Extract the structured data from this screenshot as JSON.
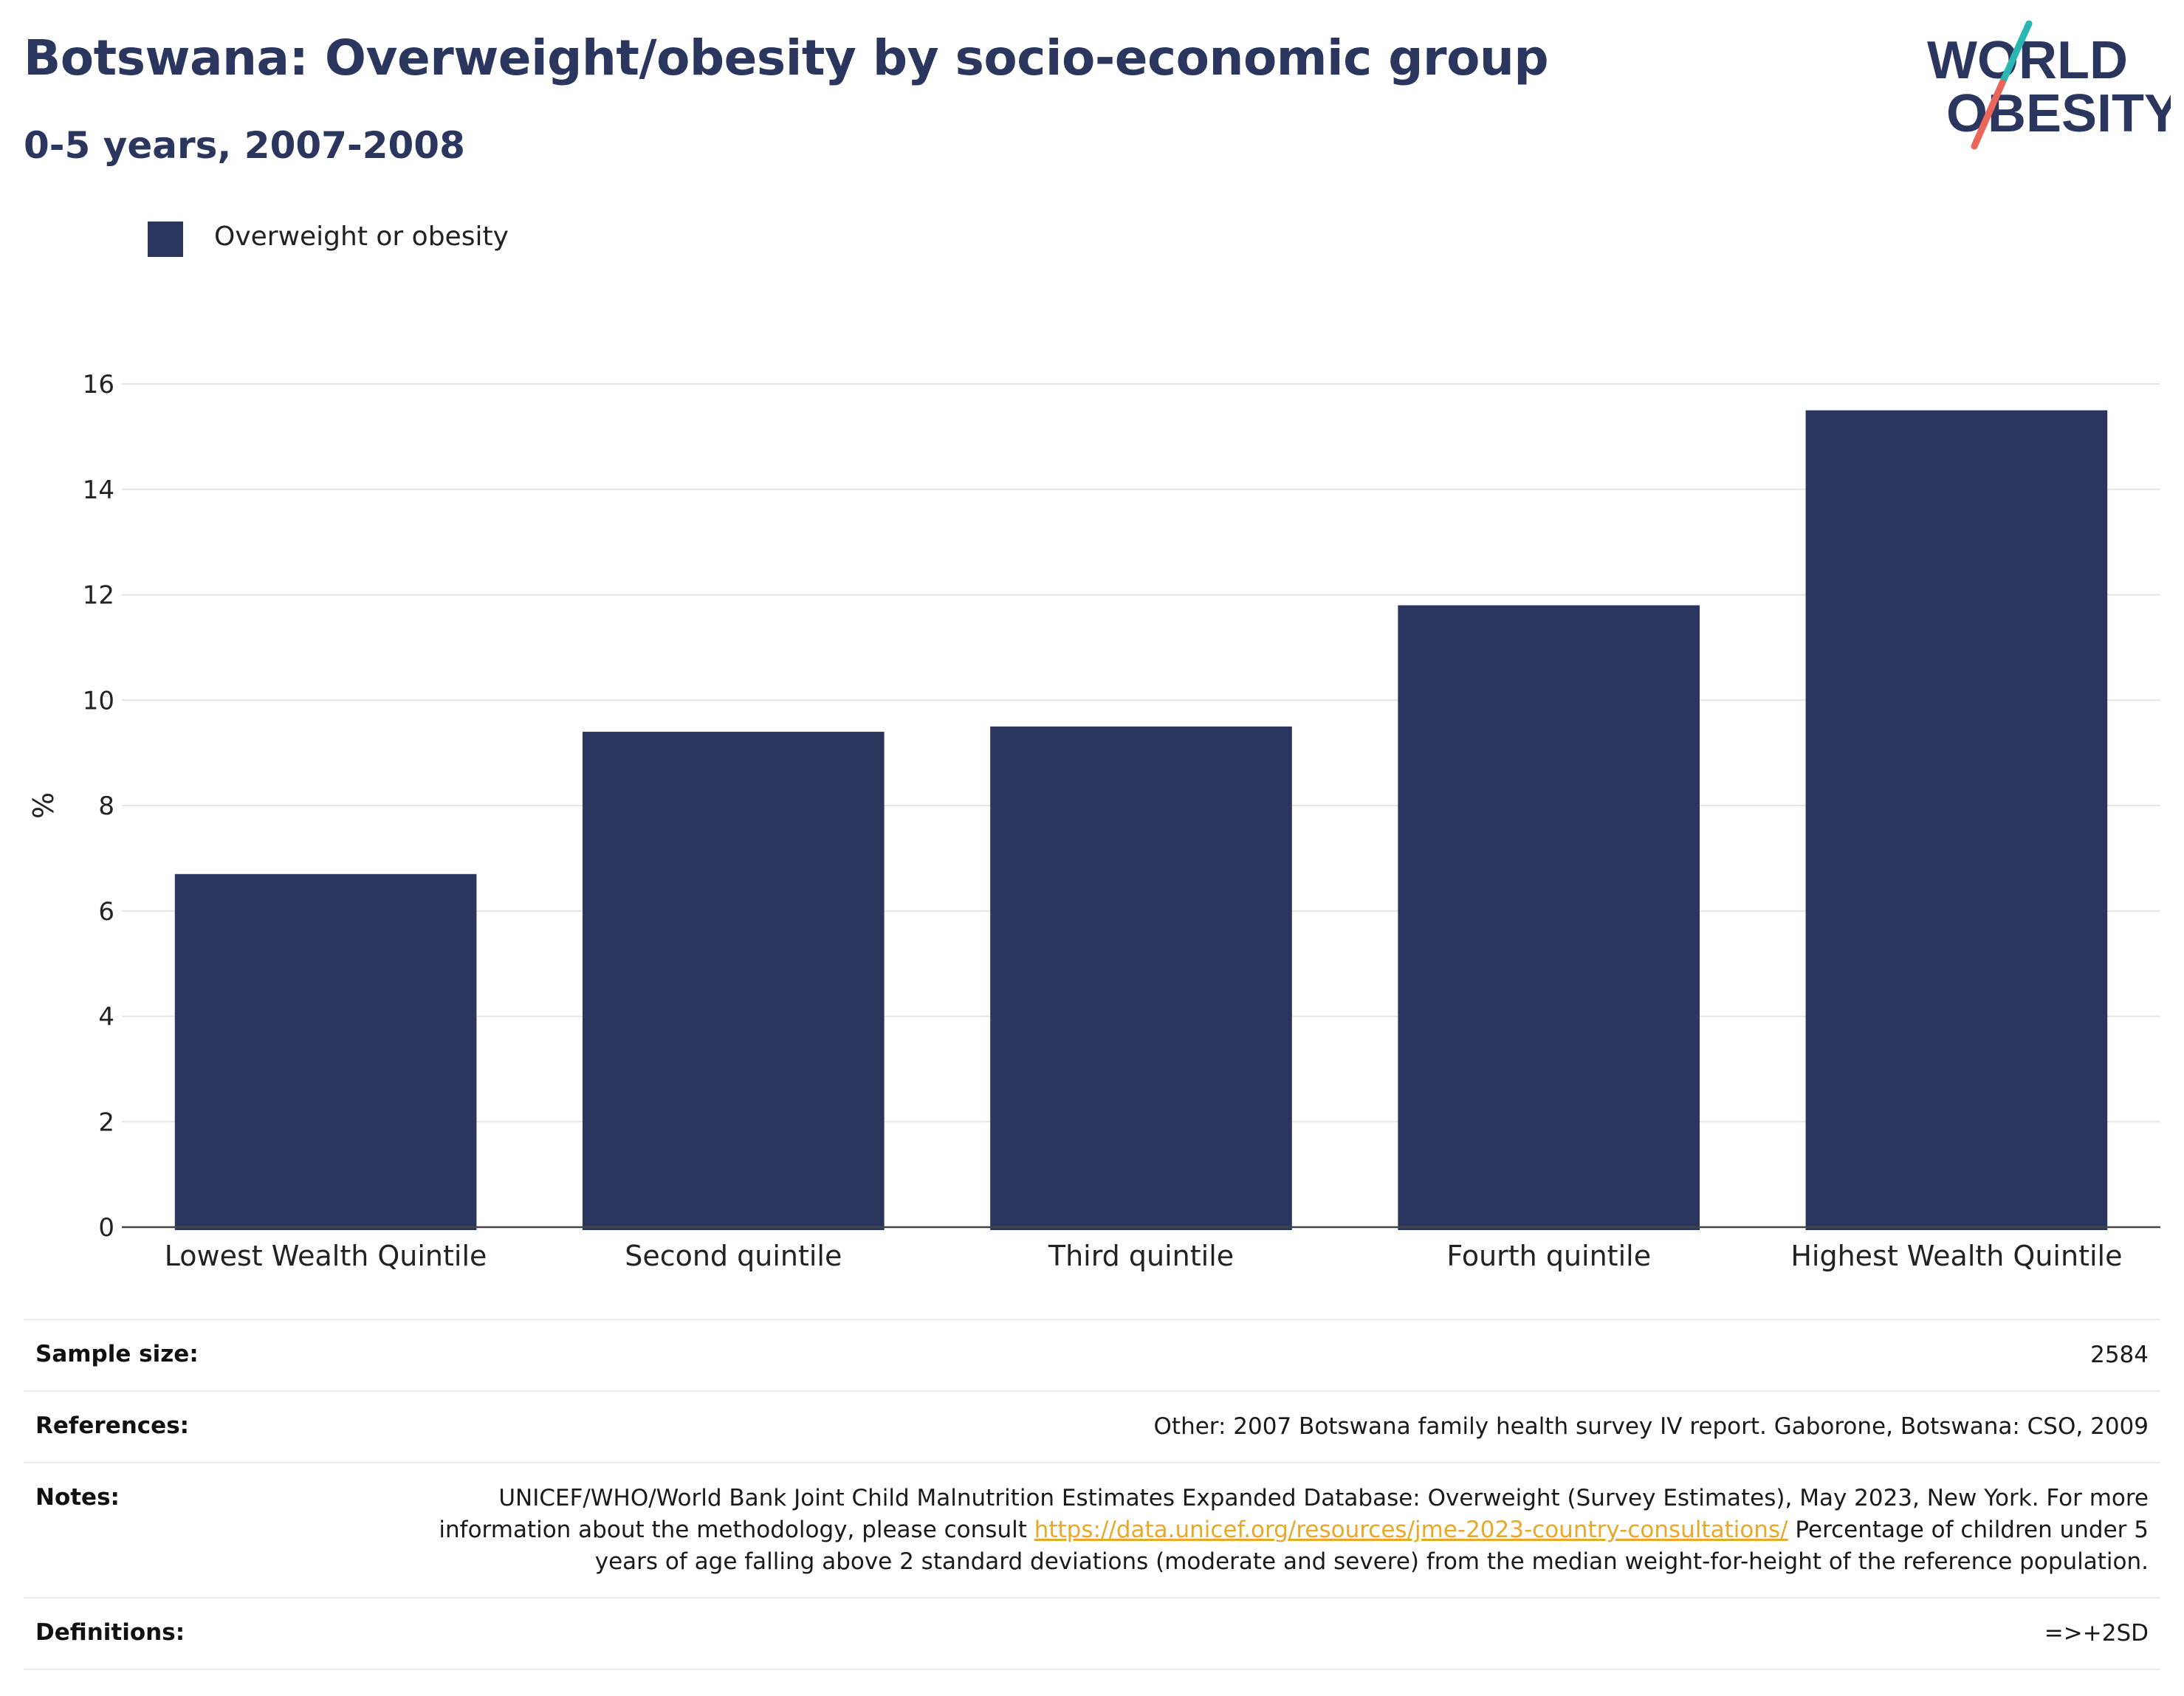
{
  "header": {
    "title": "Botswana: Overweight/obesity by socio-economic group",
    "subtitle": "0-5 years, 2007-2008"
  },
  "logo": {
    "line1": "WORLD",
    "line2": "OBESITY",
    "slash_colors": [
      "#2ab7b1",
      "#e8675a"
    ]
  },
  "colors": {
    "bar": "#2b365f",
    "title": "#2b365f",
    "grid": "#e6e6e6",
    "link": "#e8a92a"
  },
  "legend": {
    "label": "Overweight or obesity"
  },
  "chart_data": {
    "type": "bar",
    "categories": [
      "Lowest Wealth Quintile",
      "Second quintile",
      "Third quintile",
      "Fourth quintile",
      "Highest Wealth Quintile"
    ],
    "series": [
      {
        "name": "Overweight or obesity",
        "values": [
          6.7,
          9.4,
          9.5,
          11.8,
          15.5
        ]
      }
    ],
    "ylabel": "%",
    "xlabel": "",
    "ylim": [
      0,
      16
    ],
    "yticks": [
      0,
      2,
      4,
      6,
      8,
      10,
      12,
      14,
      16
    ],
    "grid": true,
    "legend_position": "top-left"
  },
  "info": {
    "rows": [
      {
        "label": "Sample size:",
        "value": "2584"
      },
      {
        "label": "References:",
        "value": "Other: 2007 Botswana family health survey IV report. Gaborone, Botswana: CSO, 2009"
      },
      {
        "label": "Notes:",
        "value_before_link": "UNICEF/WHO/World Bank Joint Child Malnutrition Estimates Expanded Database: Overweight (Survey Estimates), May 2023, New York. For more information about the methodology, please consult ",
        "link": "https://data.unicef.org/resources/jme-2023-country-consultations/",
        "value_after_link": " Percentage of children under 5 years of age falling above 2 standard deviations (moderate and severe) from the median weight-for-height of the reference population."
      },
      {
        "label": "Definitions:",
        "value": "=>+2SD"
      }
    ]
  }
}
